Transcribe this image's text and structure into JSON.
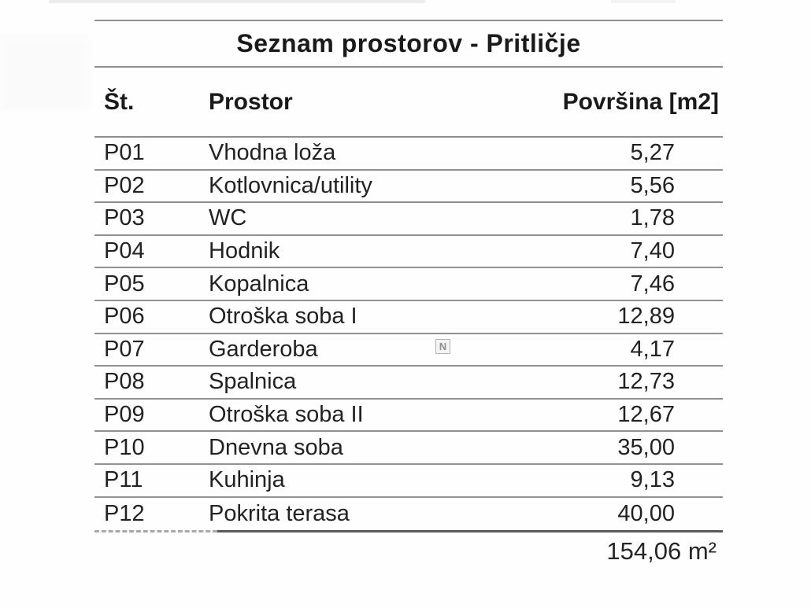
{
  "table": {
    "title": "Seznam prostorov - Pritličje",
    "columns": {
      "number": "Št.",
      "room": "Prostor",
      "area": "Površina [m2]"
    },
    "rows": [
      {
        "number": "P01",
        "room": "Vhodna loža",
        "area": "5,27"
      },
      {
        "number": "P02",
        "room": "Kotlovnica/utility",
        "area": "5,56"
      },
      {
        "number": "P03",
        "room": "WC",
        "area": "1,78"
      },
      {
        "number": "P04",
        "room": "Hodnik",
        "area": "7,40"
      },
      {
        "number": "P05",
        "room": "Kopalnica",
        "area": "7,46"
      },
      {
        "number": "P06",
        "room": "Otroška soba I",
        "area": "12,89"
      },
      {
        "number": "P07",
        "room": "Garderoba",
        "area": "4,17"
      },
      {
        "number": "P08",
        "room": "Spalnica",
        "area": "12,73"
      },
      {
        "number": "P09",
        "room": "Otroška soba II",
        "area": "12,67"
      },
      {
        "number": "P10",
        "room": "Dnevna soba",
        "area": "35,00"
      },
      {
        "number": "P11",
        "room": "Kuhinja",
        "area": "9,13"
      },
      {
        "number": "P12",
        "room": "Pokrita terasa",
        "area": "40,00"
      }
    ],
    "total": "154,06 m²"
  },
  "watermark": {
    "letter": "N"
  },
  "colors": {
    "rule_gray": "#8e8e8e",
    "text_black": "#1c1c1c",
    "watermark_gray": "#8d8d8d"
  }
}
